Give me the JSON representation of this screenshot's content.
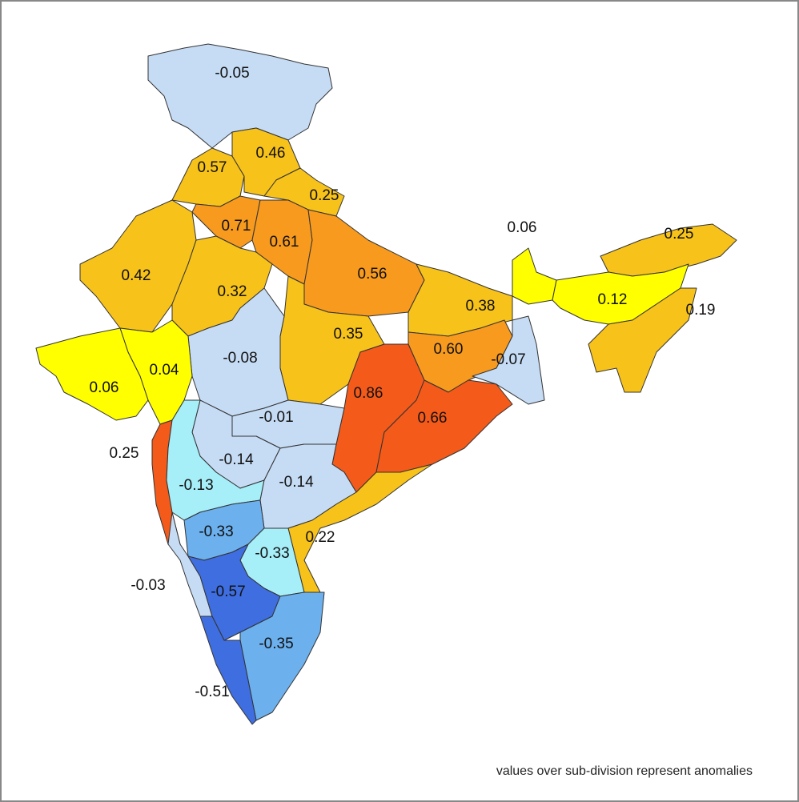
{
  "map": {
    "regions": [
      {
        "label": "-0.05",
        "value": -0.05,
        "color": "#c6dcf5"
      },
      {
        "label": "0.57",
        "value": 0.57,
        "color": "#f7c21a"
      },
      {
        "label": "0.46",
        "value": 0.46,
        "color": "#f7c21a"
      },
      {
        "label": "0.25",
        "value": 0.25,
        "color": "#f7c21a"
      },
      {
        "label": "0.71",
        "value": 0.71,
        "color": "#f79a1e"
      },
      {
        "label": "0.61",
        "value": 0.61,
        "color": "#f79a1e"
      },
      {
        "label": "0.56",
        "value": 0.56,
        "color": "#f79a1e"
      },
      {
        "label": "0.42",
        "value": 0.42,
        "color": "#f7c21a"
      },
      {
        "label": "0.32",
        "value": 0.32,
        "color": "#f7c21a"
      },
      {
        "label": "0.38",
        "value": 0.38,
        "color": "#f7c21a"
      },
      {
        "label": "0.06",
        "value": 0.06,
        "color": "#ffff00"
      },
      {
        "label": "0.25",
        "value": 0.25,
        "color": "#f7c21a"
      },
      {
        "label": "0.12",
        "value": 0.12,
        "color": "#ffff00"
      },
      {
        "label": "0.19",
        "value": 0.19,
        "color": "#f7c21a"
      },
      {
        "label": "0.35",
        "value": 0.35,
        "color": "#f7c21a"
      },
      {
        "label": "-0.08",
        "value": -0.08,
        "color": "#c6dcf5"
      },
      {
        "label": "0.60",
        "value": 0.6,
        "color": "#f79a1e"
      },
      {
        "label": "-0.07",
        "value": -0.07,
        "color": "#c6dcf5"
      },
      {
        "label": "0.04",
        "value": 0.04,
        "color": "#ffff00"
      },
      {
        "label": "0.06",
        "value": 0.06,
        "color": "#ffff00"
      },
      {
        "label": "0.86",
        "value": 0.86,
        "color": "#f45a1a"
      },
      {
        "label": "0.66",
        "value": 0.66,
        "color": "#f45a1a"
      },
      {
        "label": "-0.01",
        "value": -0.01,
        "color": "#c6dcf5"
      },
      {
        "label": "0.25",
        "value": 0.25,
        "color": "#f45a1a"
      },
      {
        "label": "-0.14",
        "value": -0.14,
        "color": "#c6dcf5"
      },
      {
        "label": "-0.13",
        "value": -0.13,
        "color": "#a6eef8"
      },
      {
        "label": "-0.14",
        "value": -0.14,
        "color": "#c6dcf5"
      },
      {
        "label": "0.22",
        "value": 0.22,
        "color": "#f7c21a"
      },
      {
        "label": "-0.33",
        "value": -0.33,
        "color": "#6cb0ee"
      },
      {
        "label": "-0.33",
        "value": -0.33,
        "color": "#a6eef8"
      },
      {
        "label": "-0.03",
        "value": -0.03,
        "color": "#c6dcf5"
      },
      {
        "label": "-0.57",
        "value": -0.57,
        "color": "#3f6ee0"
      },
      {
        "label": "-0.35",
        "value": -0.35,
        "color": "#6cb0ee"
      },
      {
        "label": "-0.51",
        "value": -0.51,
        "color": "#3f6ee0"
      }
    ],
    "footnote": "values over sub-division represent anomalies"
  }
}
